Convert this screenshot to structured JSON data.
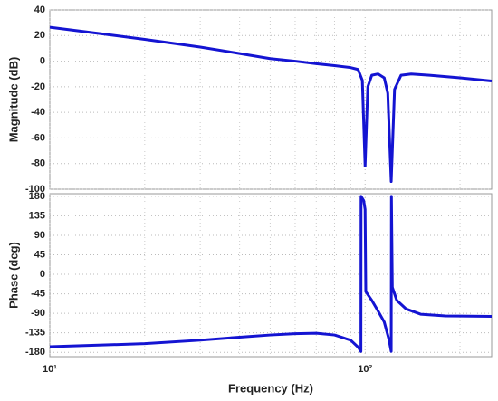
{
  "chart_data": [
    {
      "type": "line",
      "ylabel": "Magnitude (dB)",
      "xscale": "log",
      "grid": true,
      "xlim": [
        10,
        252
      ],
      "xticks": [
        10,
        100
      ],
      "xminor": [
        20,
        30,
        40,
        50,
        60,
        70,
        80,
        90,
        200
      ],
      "ylim": [
        -100,
        40
      ],
      "yticks": [
        -100,
        -80,
        -60,
        -40,
        -20,
        0,
        20,
        40
      ],
      "x": [
        10,
        15,
        20,
        30,
        40,
        50,
        60,
        70,
        80,
        90,
        95,
        98,
        100,
        102,
        105,
        110,
        115,
        118,
        121,
        124,
        130,
        140,
        160,
        200,
        252
      ],
      "series": [
        {
          "name": "Magnitude",
          "color": "#1414d2",
          "values": [
            26.5,
            21,
            17,
            11,
            6,
            2,
            0,
            -2,
            -3.5,
            -5,
            -6.5,
            -15,
            -82,
            -20,
            -11,
            -10,
            -13,
            -25,
            -94,
            -22,
            -11,
            -10,
            -11,
            -13,
            -15.5
          ]
        }
      ]
    },
    {
      "type": "line",
      "xlabel": "Frequency  (Hz)",
      "ylabel": "Phase (deg)",
      "xscale": "log",
      "grid": true,
      "xlim": [
        10,
        252
      ],
      "xticks": [
        {
          "value": 10,
          "label": "10¹"
        },
        {
          "value": 100,
          "label": "10²"
        }
      ],
      "xminor": [
        20,
        30,
        40,
        50,
        60,
        70,
        80,
        90,
        200
      ],
      "ylim": [
        -190,
        186
      ],
      "yticks": [
        -180,
        -135,
        -90,
        -45,
        0,
        45,
        90,
        135,
        180
      ],
      "x": [
        10,
        20,
        30,
        40,
        50,
        60,
        70,
        80,
        90,
        95,
        97,
        97.1,
        99,
        100,
        100.5,
        105,
        110,
        115,
        119,
        121,
        121.2,
        122,
        126,
        135,
        150,
        180,
        252
      ],
      "series": [
        {
          "name": "Phase",
          "color": "#1414d2",
          "values": [
            -167,
            -160,
            -152,
            -145,
            -140,
            -137,
            -136,
            -140,
            -152,
            -168,
            -178,
            180,
            170,
            150,
            -40,
            -60,
            -85,
            -110,
            -150,
            -178,
            180,
            -30,
            -60,
            -80,
            -92,
            -96,
            -97
          ]
        }
      ]
    }
  ]
}
